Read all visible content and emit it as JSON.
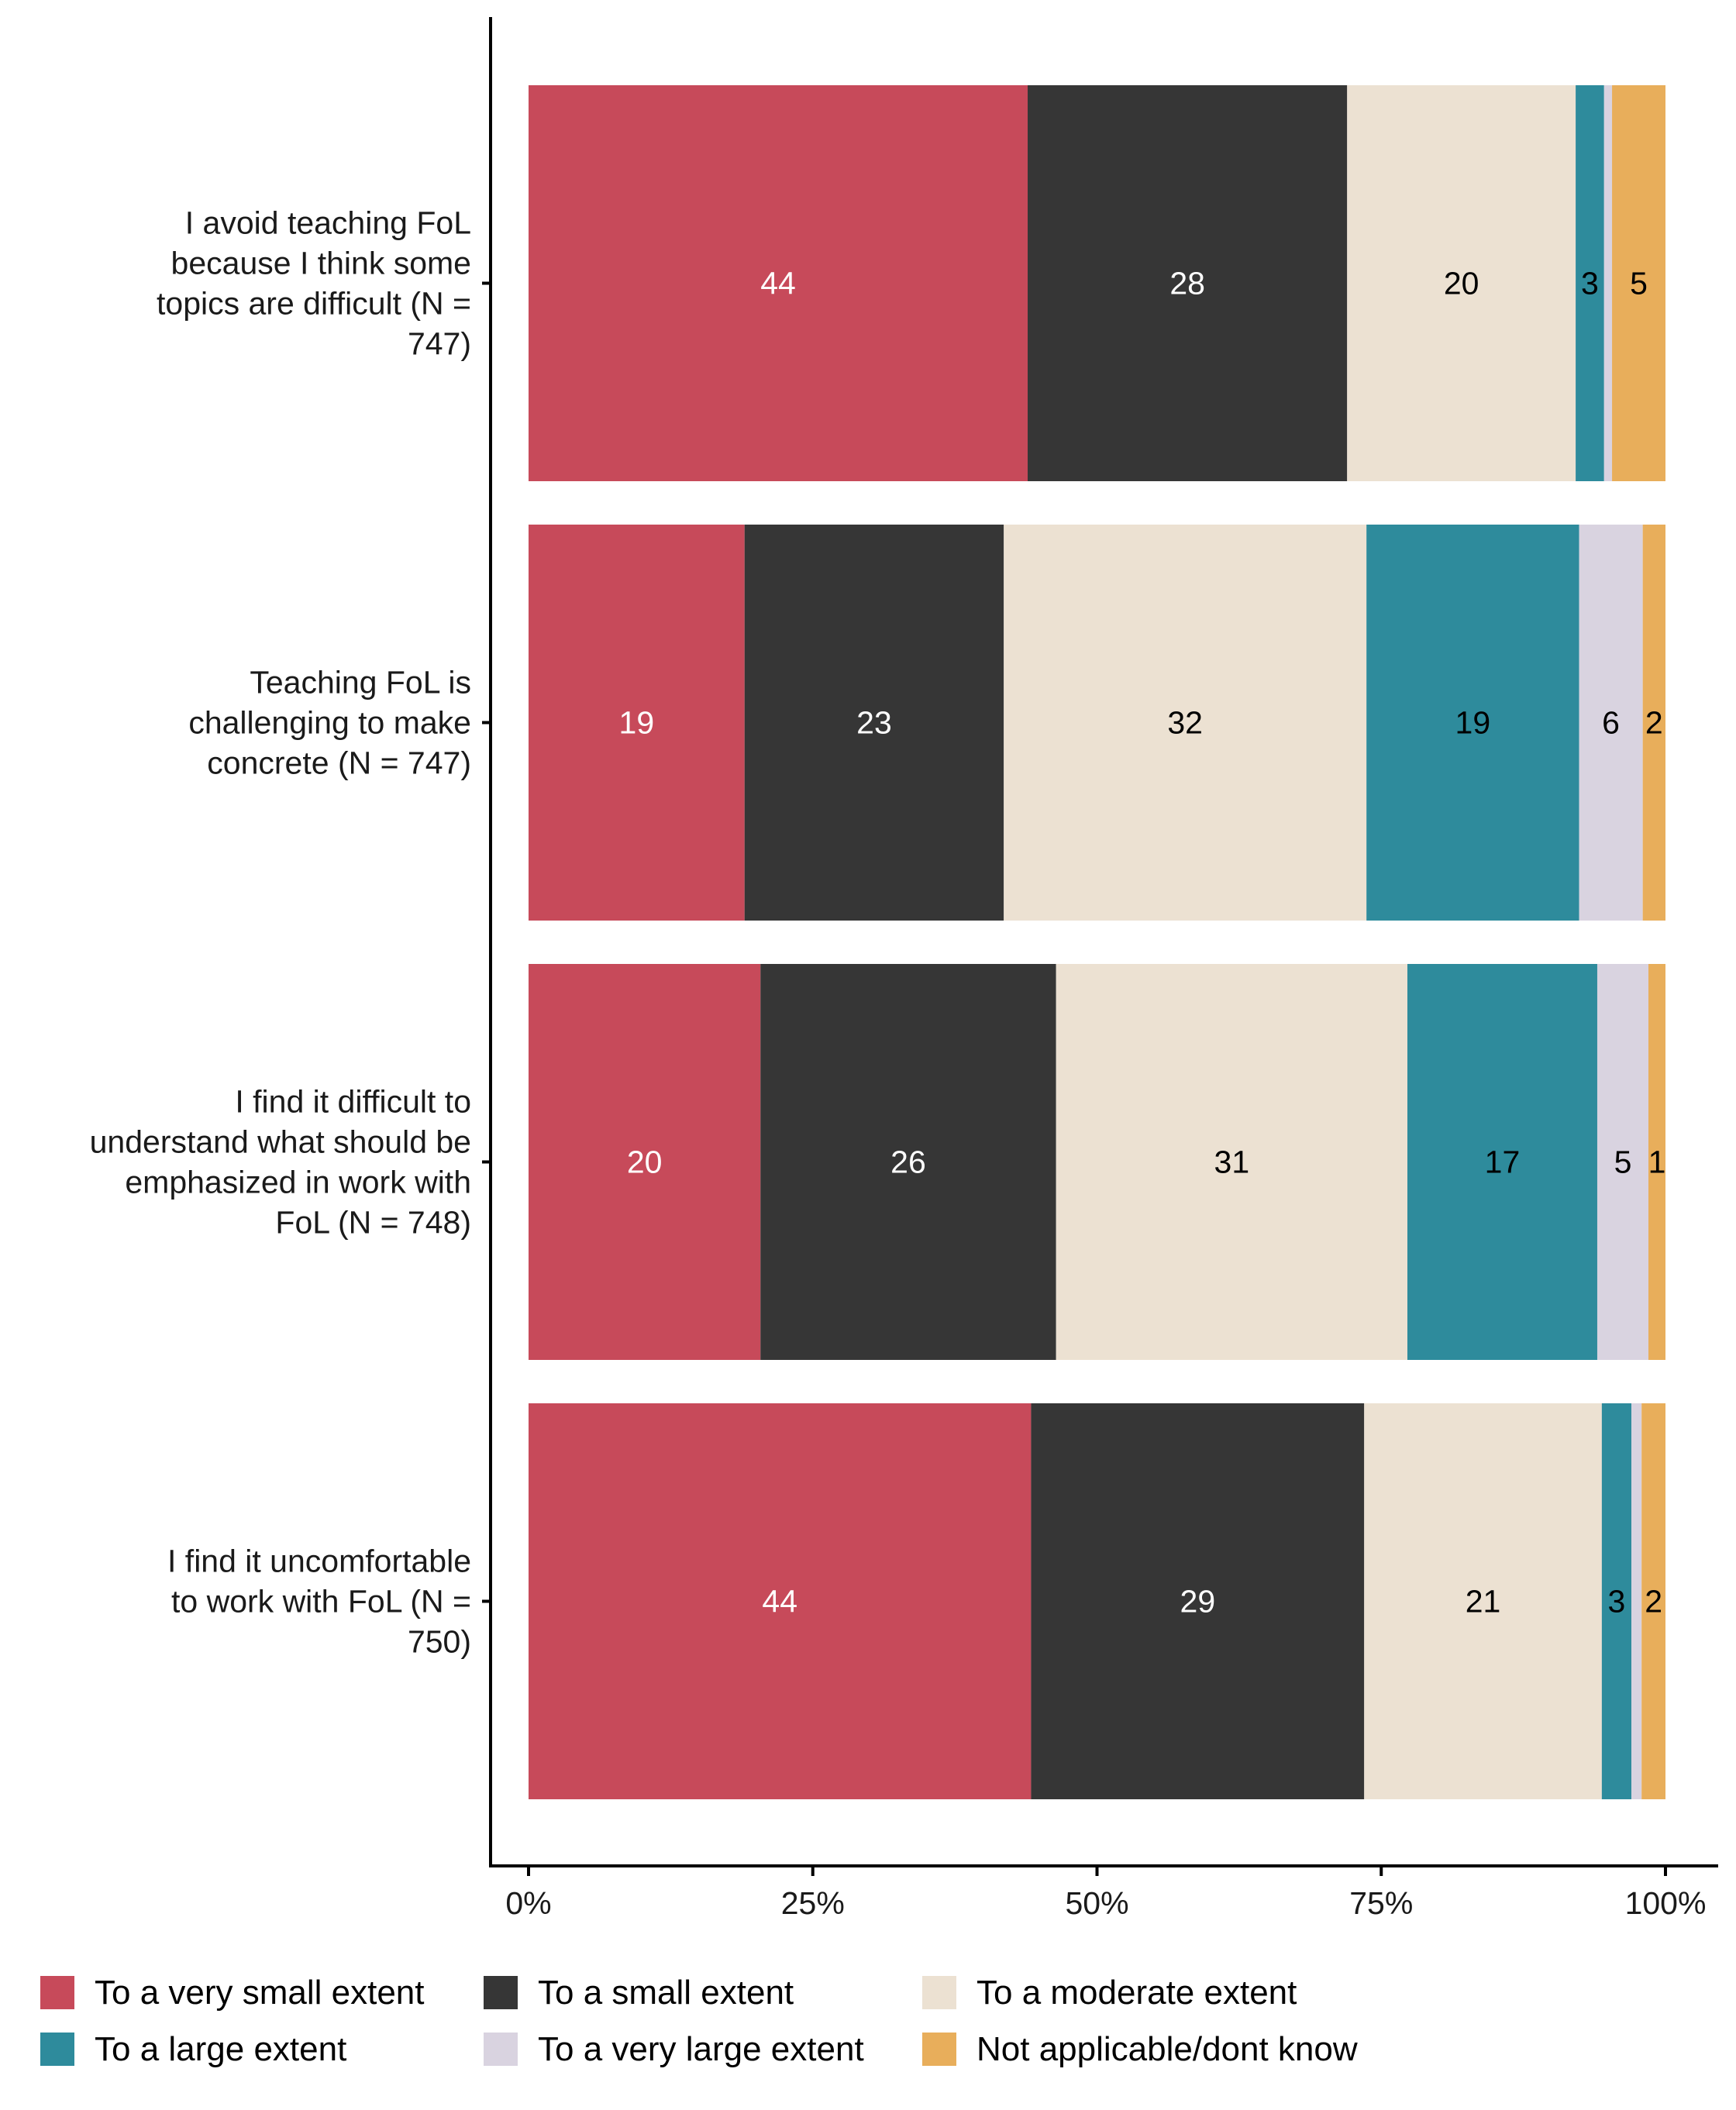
{
  "chart_data": {
    "type": "bar",
    "orientation": "horizontal",
    "stacked": true,
    "title": "",
    "xlabel": "",
    "ylabel": "",
    "xlim": [
      0,
      100
    ],
    "x_ticks": [
      0,
      25,
      50,
      75,
      100
    ],
    "x_tick_labels": [
      "0%",
      "25%",
      "50%",
      "75%",
      "100%"
    ],
    "grid": false,
    "legend_position": "bottom",
    "categories": [
      "I avoid teaching FoL because I think some topics are difficult (N = 747)",
      "Teaching FoL is challenging to make concrete (N = 747)",
      "I find it difficult to understand what should be emphasized in work with FoL (N = 748)",
      "I find it uncomfortable to work with FoL (N = 750)"
    ],
    "category_label_lines": [
      [
        "I avoid teaching FoL",
        "because I think some",
        "topics are difficult (N =",
        "747)"
      ],
      [
        "Teaching FoL is",
        "challenging to make",
        "concrete (N = 747)"
      ],
      [
        "I find it difficult to",
        "understand what should be",
        "emphasized in work with",
        "FoL (N = 748)"
      ],
      [
        "I find it uncomfortable",
        "to work with FoL (N =",
        "750)"
      ]
    ],
    "series": [
      {
        "name": "To a very small extent",
        "color": "#C74A5A",
        "label_color": "#FFFFFF",
        "values": [
          43.9,
          19.0,
          20.4,
          44.2
        ],
        "labels": [
          "44",
          "19",
          "20",
          "44"
        ]
      },
      {
        "name": "To a small extent",
        "color": "#363636",
        "label_color": "#FFFFFF",
        "values": [
          28.1,
          22.8,
          26.0,
          29.3
        ],
        "labels": [
          "28",
          "23",
          "26",
          "29"
        ]
      },
      {
        "name": "To a moderate extent",
        "color": "#ECE1D2",
        "label_color": "#000000",
        "values": [
          20.1,
          31.9,
          30.9,
          20.9
        ],
        "labels": [
          "20",
          "32",
          "31",
          "21"
        ]
      },
      {
        "name": "To a large extent",
        "color": "#2E8B9C",
        "label_color": "#000000",
        "values": [
          2.5,
          18.7,
          16.7,
          2.6
        ],
        "labels": [
          "3",
          "19",
          "17",
          "3"
        ]
      },
      {
        "name": "To a very large extent",
        "color": "#D9D3E0",
        "label_color": "#000000",
        "values": [
          0.7,
          5.6,
          4.5,
          0.9
        ],
        "labels": [
          "",
          "6",
          "5",
          ""
        ]
      },
      {
        "name": "Not applicable/dont know",
        "color": "#E8AE5B",
        "label_color": "#000000",
        "values": [
          4.7,
          2.0,
          1.5,
          2.1
        ],
        "labels": [
          "5",
          "2",
          "1",
          "2"
        ]
      }
    ],
    "legend": {
      "rows": [
        [
          "To a very small extent",
          "To a small extent",
          "To a moderate extent"
        ],
        [
          "To a large extent",
          "To a very large extent",
          "Not applicable/dont know"
        ]
      ]
    }
  }
}
